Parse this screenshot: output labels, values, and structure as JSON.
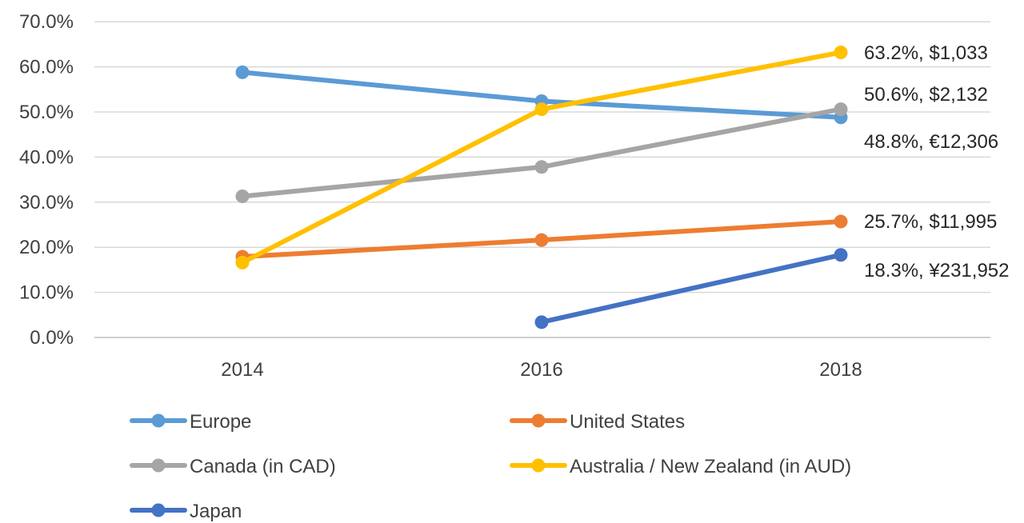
{
  "chart_data": {
    "type": "line",
    "x": [
      "2014",
      "2016",
      "2018"
    ],
    "y_ticks": [
      "0.0%",
      "10.0%",
      "20.0%",
      "30.0%",
      "40.0%",
      "50.0%",
      "60.0%",
      "70.0%"
    ],
    "ylim": [
      0,
      70
    ],
    "grid": true,
    "legend_position": "bottom",
    "series": [
      {
        "name": "Europe",
        "color": "#5B9BD5",
        "values": [
          58.8,
          52.4,
          48.8
        ],
        "end_label": "48.8%, €12,306"
      },
      {
        "name": "United States",
        "color": "#ED7D31",
        "values": [
          17.9,
          21.6,
          25.7
        ],
        "end_label": "25.7%, $11,995"
      },
      {
        "name": "Canada (in CAD)",
        "color": "#A5A5A5",
        "values": [
          31.3,
          37.8,
          50.6
        ],
        "end_label": "50.6%, $2,132"
      },
      {
        "name": "Australia / New Zealand (in AUD)",
        "color": "#FFC000",
        "values": [
          16.6,
          50.6,
          63.2
        ],
        "end_label": "63.2%, $1,033"
      },
      {
        "name": "Japan",
        "color": "#4472C4",
        "values": [
          null,
          3.4,
          18.3
        ],
        "end_label": "18.3%, ¥231,952"
      }
    ]
  }
}
